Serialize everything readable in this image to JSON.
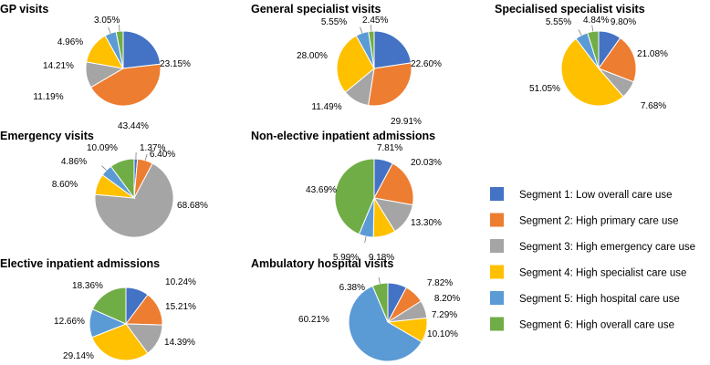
{
  "colors": [
    "#4472c4",
    "#ed7d31",
    "#a5a5a5",
    "#ffc000",
    "#5b9bd5",
    "#70ad47"
  ],
  "legend": [
    "Segment 1: Low overall care use",
    "Segment 2: High primary care use",
    "Segment 3: High emergency care use",
    "Segment 4: High specialist care use",
    "Segment 5: High hospital care use",
    "Segment 6: High overall care use"
  ],
  "chart_data": [
    {
      "type": "pie",
      "title": "GP visits",
      "values": [
        23.15,
        43.44,
        11.19,
        14.21,
        4.96,
        3.05
      ],
      "labels": [
        "23.15%",
        "43.44%",
        "11.19%",
        "14.21%",
        "4.96%",
        "3.05%"
      ]
    },
    {
      "type": "pie",
      "title": "General specialist visits",
      "values": [
        22.6,
        29.91,
        11.49,
        28.0,
        5.55,
        2.45
      ],
      "labels": [
        "22.60%",
        "29.91%",
        "11.49%",
        "28.00%",
        "5.55%",
        "2.45%"
      ]
    },
    {
      "type": "pie",
      "title": "Specialised specialist visits",
      "values": [
        9.8,
        21.08,
        7.68,
        51.05,
        5.55,
        4.84
      ],
      "labels": [
        "9.80%",
        "21.08%",
        "7.68%",
        "51.05%",
        "5.55%",
        "4.84%"
      ]
    },
    {
      "type": "pie",
      "title": "Emergency visits",
      "values": [
        1.37,
        6.4,
        68.68,
        8.6,
        4.86,
        10.09
      ],
      "labels": [
        "1.37%",
        "6.40%",
        "68.68%",
        "8.60%",
        "4.86%",
        "10.09%"
      ]
    },
    {
      "type": "pie",
      "title": "Non-elective inpatient admissions",
      "values": [
        7.81,
        20.03,
        13.3,
        9.18,
        5.99,
        43.69
      ],
      "labels": [
        "7.81%",
        "20.03%",
        "13.30%",
        "9.18%",
        "5.99%",
        "43.69%"
      ]
    },
    {
      "type": "pie",
      "title": "Elective inpatient admissions",
      "values": [
        10.24,
        15.21,
        14.39,
        29.14,
        12.66,
        18.36
      ],
      "labels": [
        "10.24%",
        "15.21%",
        "14.39%",
        "29.14%",
        "12.66%",
        "18.36%"
      ]
    },
    {
      "type": "pie",
      "title": "Ambulatory hospital visits",
      "values": [
        7.82,
        8.2,
        7.29,
        10.1,
        60.21,
        6.38
      ],
      "labels": [
        "7.82%",
        "8.20%",
        "7.29%",
        "10.10%",
        "60.21%",
        "6.38%"
      ]
    }
  ]
}
